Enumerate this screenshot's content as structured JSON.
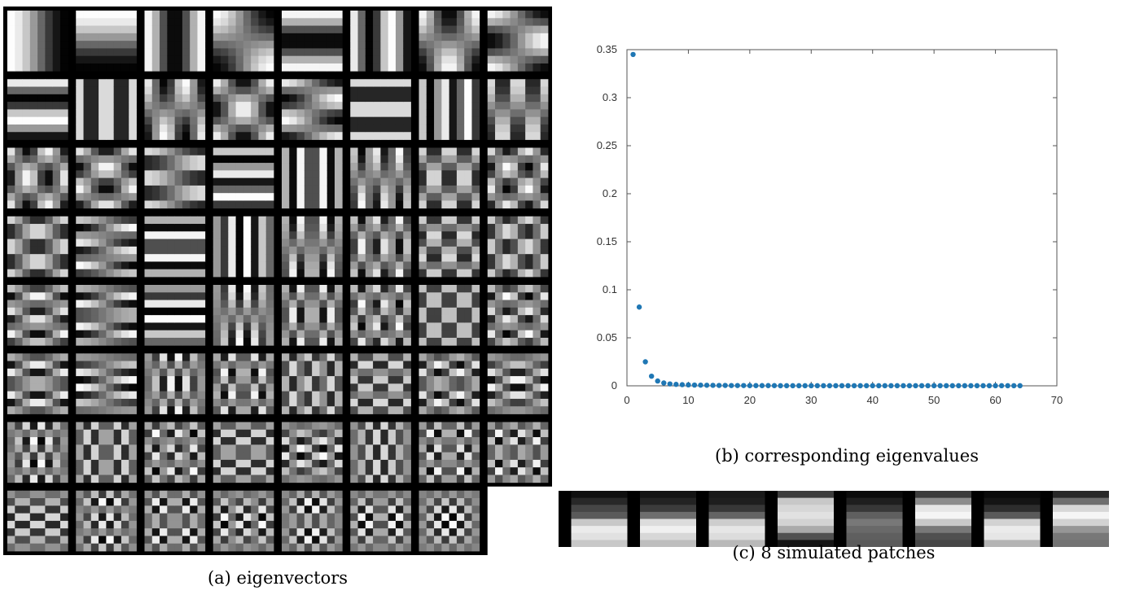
{
  "chart_data": [
    {
      "type": "heatmap",
      "caption": "(a) eigenvectors",
      "grid_rows": 8,
      "grid_cols": 8,
      "tile_count": 63,
      "tile_resolution": 8,
      "colormap": "grayscale"
    },
    {
      "type": "scatter",
      "caption": "(b) corresponding eigenvalues",
      "title": "",
      "xlabel": "",
      "ylabel": "",
      "xlim": [
        0,
        70
      ],
      "ylim": [
        0,
        0.35
      ],
      "xticks": [
        "0",
        "10",
        "20",
        "30",
        "40",
        "50",
        "60",
        "70"
      ],
      "yticks": [
        "0",
        "0.05",
        "0.1",
        "0.15",
        "0.2",
        "0.25",
        "0.3",
        "0.35"
      ],
      "grid": false,
      "marker_color": "#1f77b4",
      "x": [
        1,
        2,
        3,
        4,
        5,
        6,
        7,
        8,
        9,
        10,
        11,
        12,
        13,
        14,
        15,
        16,
        17,
        18,
        19,
        20,
        21,
        22,
        23,
        24,
        25,
        26,
        27,
        28,
        29,
        30,
        31,
        32,
        33,
        34,
        35,
        36,
        37,
        38,
        39,
        40,
        41,
        42,
        43,
        44,
        45,
        46,
        47,
        48,
        49,
        50,
        51,
        52,
        53,
        54,
        55,
        56,
        57,
        58,
        59,
        60,
        61,
        62,
        63,
        64
      ],
      "y": [
        0.345,
        0.082,
        0.025,
        0.01,
        0.005,
        0.003,
        0.002,
        0.0015,
        0.0012,
        0.001,
        0.0008,
        0.0007,
        0.0006,
        0.0005,
        0.0004,
        0.0004,
        0.0003,
        0.0003,
        0.0003,
        0.0002,
        0.0002,
        0.0002,
        0.0002,
        0.0002,
        0.0001,
        0.0001,
        0.0001,
        0.0001,
        0.0001,
        0.0001,
        0.0001,
        0.0001,
        0.0001,
        0.0001,
        0.0001,
        0.0001,
        0.0001,
        0.0001,
        0.0001,
        0.0001,
        0.0001,
        0.0001,
        0.0001,
        0.0001,
        0.0001,
        0.0001,
        0.0001,
        0.0001,
        0.0001,
        0.0001,
        0.0001,
        0.0001,
        0.0001,
        0.0001,
        0.0001,
        0.0001,
        0.0001,
        0.0001,
        0.0001,
        0.0001,
        0.0001,
        0.0001,
        0.0001,
        0.0001
      ]
    },
    {
      "type": "heatmap",
      "caption": "(c) 8 simulated patches",
      "patch_count": 8,
      "colormap": "grayscale"
    }
  ]
}
